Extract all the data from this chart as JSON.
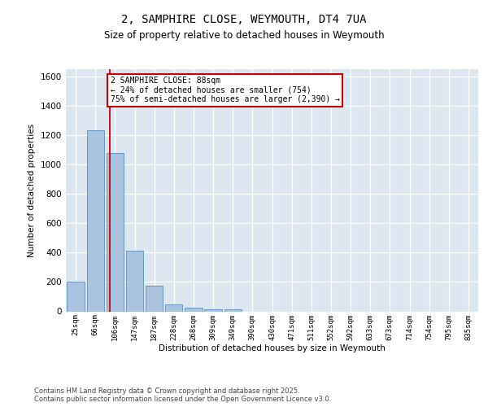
{
  "title_line1": "2, SAMPHIRE CLOSE, WEYMOUTH, DT4 7UA",
  "title_line2": "Size of property relative to detached houses in Weymouth",
  "xlabel": "Distribution of detached houses by size in Weymouth",
  "ylabel": "Number of detached properties",
  "footnote1": "Contains HM Land Registry data © Crown copyright and database right 2025.",
  "footnote2": "Contains public sector information licensed under the Open Government Licence v3.0.",
  "bar_labels": [
    "25sqm",
    "66sqm",
    "106sqm",
    "147sqm",
    "187sqm",
    "228sqm",
    "268sqm",
    "309sqm",
    "349sqm",
    "390sqm",
    "430sqm",
    "471sqm",
    "511sqm",
    "552sqm",
    "592sqm",
    "633sqm",
    "673sqm",
    "714sqm",
    "754sqm",
    "795sqm",
    "835sqm"
  ],
  "bar_values": [
    205,
    1235,
    1080,
    415,
    175,
    45,
    25,
    15,
    15,
    0,
    0,
    0,
    0,
    0,
    0,
    0,
    0,
    0,
    0,
    0,
    0
  ],
  "bar_color": "#aac4e0",
  "bar_edge_color": "#5a8fc0",
  "bg_color": "#dce6f0",
  "grid_color": "#ffffff",
  "red_line_x": 1.72,
  "annotation_text": "2 SAMPHIRE CLOSE: 88sqm\n← 24% of detached houses are smaller (754)\n75% of semi-detached houses are larger (2,390) →",
  "annotation_box_color": "#ffffff",
  "annotation_border_color": "#cc0000",
  "ylim": [
    0,
    1650
  ],
  "yticks": [
    0,
    200,
    400,
    600,
    800,
    1000,
    1200,
    1400,
    1600
  ]
}
